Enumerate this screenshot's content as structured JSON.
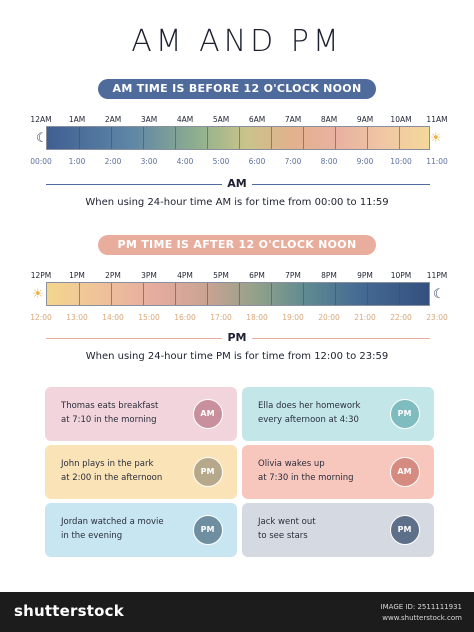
{
  "title": "AM AND PM",
  "am": {
    "banner": "AM TIME IS BEFORE 12 O'CLOCK NOON",
    "hours": [
      "12AM",
      "1AM",
      "2AM",
      "3AM",
      "4AM",
      "5AM",
      "6AM",
      "7AM",
      "8AM",
      "9AM",
      "10AM",
      "11AM"
    ],
    "times": [
      "00:00",
      "1:00",
      "2:00",
      "3:00",
      "4:00",
      "5:00",
      "6:00",
      "7:00",
      "8:00",
      "9:00",
      "10:00",
      "11:00"
    ],
    "period": "AM",
    "note": "When using 24-hour time AM is for time from 00:00 to 11:59",
    "start_icon": "moon-icon",
    "end_icon": "sun-icon"
  },
  "pm": {
    "banner": "PM TIME IS AFTER 12 O'CLOCK NOON",
    "hours": [
      "12PM",
      "1PM",
      "2PM",
      "3PM",
      "4PM",
      "5PM",
      "6PM",
      "7PM",
      "8PM",
      "9PM",
      "10PM",
      "11PM"
    ],
    "times": [
      "12:00",
      "13:00",
      "14:00",
      "15:00",
      "16:00",
      "17:00",
      "18:00",
      "19:00",
      "20:00",
      "21:00",
      "22:00",
      "23:00"
    ],
    "period": "PM",
    "note": "When using 24-hour time PM is for time from 12:00 to 23:59",
    "start_icon": "sun-icon",
    "end_icon": "moon-icon"
  },
  "examples": [
    {
      "line1": "Thomas eats breakfast",
      "line2": "at 7:10 in the morning",
      "badge": "AM",
      "bg": "#f2d5dc",
      "badge_color": "#c98f9c"
    },
    {
      "line1": "Ella does her homework",
      "line2": "every afternoon at 4:30",
      "badge": "PM",
      "bg": "#c3e7e9",
      "badge_color": "#7fbcc0"
    },
    {
      "line1": "John plays in the park",
      "line2": "at 2:00 in the afternoon",
      "badge": "PM",
      "bg": "#fae3b7",
      "badge_color": "#b6a88a"
    },
    {
      "line1": "Olivia wakes up",
      "line2": "at 7:30 in the morning",
      "badge": "AM",
      "bg": "#f7c6bd",
      "badge_color": "#d58b80"
    },
    {
      "line1": "Jordan watched a movie",
      "line2": "in the evening",
      "badge": "PM",
      "bg": "#c7e6f2",
      "badge_color": "#6f8fa1"
    },
    {
      "line1": "Jack went out",
      "line2": "to see stars",
      "badge": "PM",
      "bg": "#d5d9e2",
      "badge_color": "#5e6f8a"
    }
  ],
  "colors": {
    "am_accent": "#4f6b9c",
    "pm_accent": "#e8ad9c",
    "am_time_text": "#5b6fa0",
    "pm_time_text": "#d7a87b"
  },
  "footer": {
    "brand": "shutterstock",
    "image_id": "IMAGE ID: 2511111931",
    "site": "www.shutterstock.com"
  }
}
